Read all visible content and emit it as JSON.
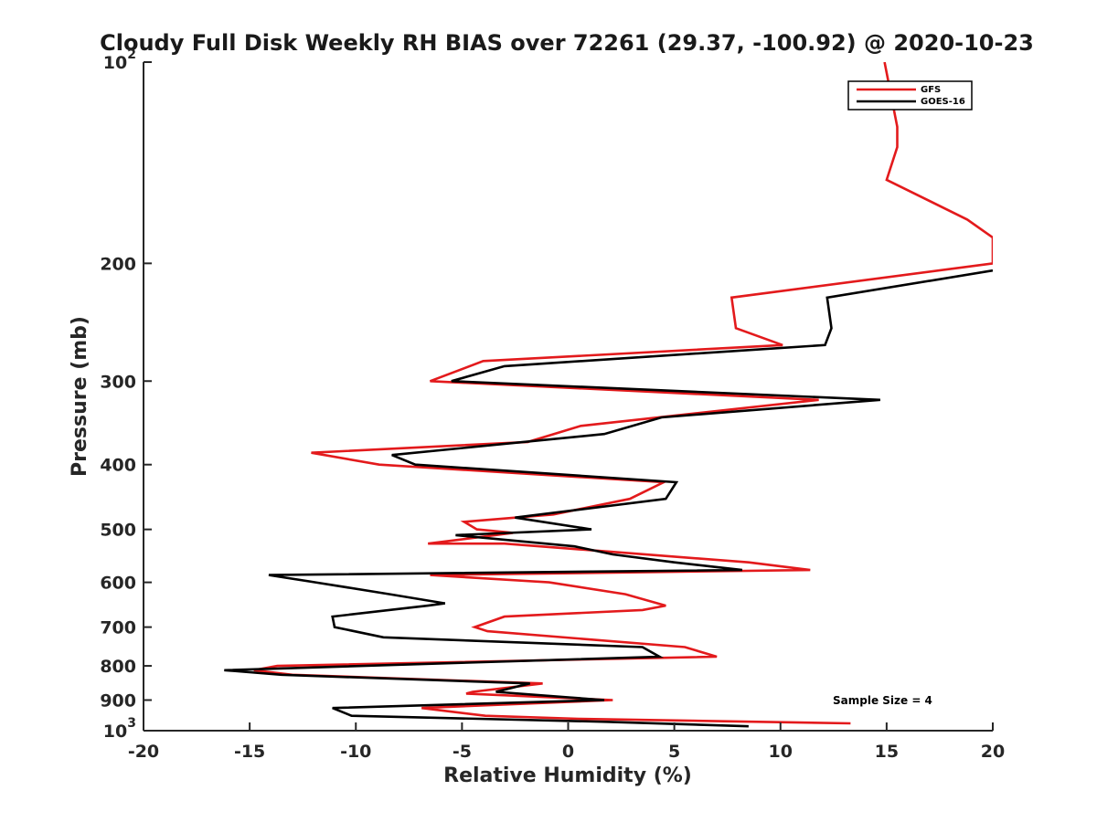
{
  "chart_data": {
    "type": "line",
    "title": "Cloudy Full Disk Weekly RH BIAS over 72261 (29.37, -100.92) @ 2020-10-23",
    "xlabel": "Relative Humidity (%)",
    "ylabel": "Pressure (mb)",
    "xlim": [
      -20,
      20
    ],
    "ylim": [
      100,
      1000
    ],
    "y_scale": "log",
    "y_reversed": true,
    "x_ticks": [
      -20,
      -15,
      -10,
      -5,
      0,
      5,
      10,
      15,
      20
    ],
    "x_tick_labels": [
      "-20",
      "-15",
      "-10",
      "-5",
      "0",
      "5",
      "10",
      "15",
      "20"
    ],
    "y_ticks": [
      100,
      200,
      300,
      400,
      500,
      600,
      700,
      800,
      900,
      1000
    ],
    "y_tick_labels": [
      "10^2",
      "200",
      "300",
      "400",
      "500",
      "600",
      "700",
      "800",
      "900",
      "10^3"
    ],
    "grid": false,
    "legend_position": "top-right",
    "annotation": "Sample Size = 4",
    "series": [
      {
        "name": "GFS",
        "color": "#e31a1c",
        "points": [
          [
            14.9,
            100
          ],
          [
            15.5,
            125
          ],
          [
            15.5,
            134
          ],
          [
            15.0,
            150
          ],
          [
            18.8,
            172
          ],
          [
            20.0,
            183
          ],
          [
            20.0,
            200
          ],
          [
            7.7,
            225
          ],
          [
            7.9,
            250
          ],
          [
            10.1,
            265
          ],
          [
            -4,
            280
          ],
          [
            -6.5,
            300
          ],
          [
            11.8,
            320
          ],
          [
            0.6,
            350
          ],
          [
            -1.9,
            370
          ],
          [
            -12.1,
            384
          ],
          [
            -8.9,
            400
          ],
          [
            4.5,
            425
          ],
          [
            2.9,
            450
          ],
          [
            -0.7,
            475
          ],
          [
            -4.9,
            487
          ],
          [
            -4.3,
            500
          ],
          [
            -2.6,
            506
          ],
          [
            -6.6,
            525
          ],
          [
            -3.0,
            525
          ],
          [
            2.0,
            540
          ],
          [
            8.5,
            560
          ],
          [
            11.4,
            575
          ],
          [
            -6.5,
            585
          ],
          [
            -0.9,
            600
          ],
          [
            2.7,
            625
          ],
          [
            4.6,
            650
          ],
          [
            3.5,
            660
          ],
          [
            -3.0,
            675
          ],
          [
            -4.4,
            700
          ],
          [
            -3.8,
            710
          ],
          [
            5.5,
            750
          ],
          [
            7.0,
            775
          ],
          [
            -13.7,
            800
          ],
          [
            -14.8,
            812
          ],
          [
            -13.0,
            825
          ],
          [
            -1.2,
            850
          ],
          [
            -4.5,
            875
          ],
          [
            -4.8,
            880
          ],
          [
            2.1,
            900
          ],
          [
            -6.9,
            925
          ],
          [
            -3.9,
            950
          ],
          [
            0.5,
            960
          ],
          [
            13.3,
            975
          ]
        ]
      },
      {
        "name": "GOES-16",
        "color": "#000000",
        "points": [
          [
            20.0,
            205
          ],
          [
            12.2,
            225
          ],
          [
            12.4,
            250
          ],
          [
            12.1,
            265
          ],
          [
            -3,
            285
          ],
          [
            -5.5,
            300
          ],
          [
            14.7,
            320
          ],
          [
            4.4,
            340
          ],
          [
            1.7,
            360
          ],
          [
            -8.3,
            387
          ],
          [
            -7.2,
            400
          ],
          [
            5.1,
            425
          ],
          [
            4.6,
            450
          ],
          [
            -2.5,
            480
          ],
          [
            1.1,
            500
          ],
          [
            -5.3,
            510
          ],
          [
            0.3,
            530
          ],
          [
            2.1,
            545
          ],
          [
            5.0,
            560
          ],
          [
            8.2,
            575
          ],
          [
            -14.1,
            585
          ],
          [
            -11.9,
            600
          ],
          [
            -8.4,
            625
          ],
          [
            -5.8,
            645
          ],
          [
            -6.6,
            650
          ],
          [
            -11.1,
            675
          ],
          [
            -11.0,
            700
          ],
          [
            -8.7,
            725
          ],
          [
            3.5,
            750
          ],
          [
            4.3,
            775
          ],
          [
            -16.2,
            812
          ],
          [
            -13.5,
            825
          ],
          [
            -1.8,
            850
          ],
          [
            -3.4,
            875
          ],
          [
            1.7,
            900
          ],
          [
            -11.1,
            925
          ],
          [
            -10.2,
            950
          ],
          [
            1.8,
            970
          ],
          [
            8.5,
            985
          ]
        ]
      }
    ]
  }
}
